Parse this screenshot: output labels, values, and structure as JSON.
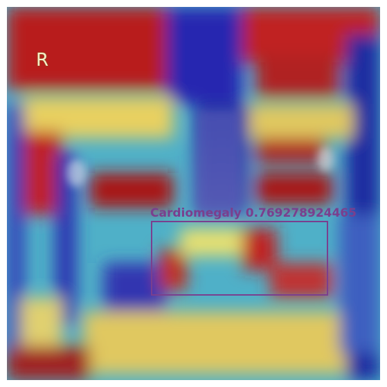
{
  "image": {
    "side_marker": "R",
    "detection": {
      "label": "Cardiomegaly",
      "score": "0.769278924465"
    },
    "colors": {
      "box": "#7a3f8e",
      "heat_high": "#b01818",
      "heat_mid": "#f0e060",
      "heat_low": "#2020a0"
    }
  }
}
